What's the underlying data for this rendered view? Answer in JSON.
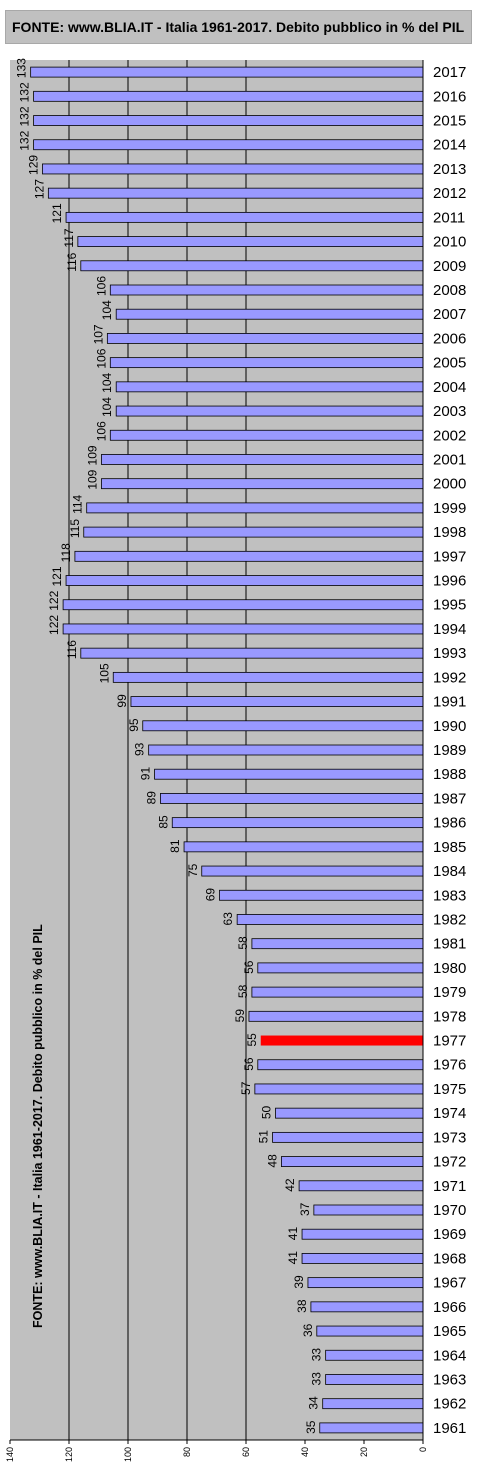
{
  "title": "FONTE: www.BLIA.IT - Italia 1961-2017. Debito pubblico in % del PIL",
  "colors": {
    "plot_bg": "#c0c0c0",
    "bar": "#9999ff",
    "highlight": "#ff0000",
    "grid": "#000000"
  },
  "chart_data": {
    "type": "bar",
    "orientation": "horizontal",
    "title": "FONTE: www.BLIA.IT - Italia 1961-2017. Debito pubblico in % del PIL",
    "side_label": "FONTE: www.BLIA.IT - Italia 1961-2017. Debito pubblico in % del PIL",
    "xlim": [
      0,
      140
    ],
    "x_reversed": true,
    "x_ticks": [
      140,
      120,
      100,
      80,
      60,
      40,
      20,
      0
    ],
    "gridlines": [
      120,
      100,
      80,
      60
    ],
    "highlight_category": "1977",
    "categories": [
      "2017",
      "2016",
      "2015",
      "2014",
      "2013",
      "2012",
      "2011",
      "2010",
      "2009",
      "2008",
      "2007",
      "2006",
      "2005",
      "2004",
      "2003",
      "2002",
      "2001",
      "2000",
      "1999",
      "1998",
      "1997",
      "1996",
      "1995",
      "1994",
      "1993",
      "1992",
      "1991",
      "1990",
      "1989",
      "1988",
      "1987",
      "1986",
      "1985",
      "1984",
      "1983",
      "1982",
      "1981",
      "1980",
      "1979",
      "1978",
      "1977",
      "1976",
      "1975",
      "1974",
      "1973",
      "1972",
      "1971",
      "1970",
      "1969",
      "1968",
      "1967",
      "1966",
      "1965",
      "1964",
      "1963",
      "1962",
      "1961"
    ],
    "values": [
      133,
      132,
      132,
      132,
      129,
      127,
      121,
      117,
      116,
      106,
      104,
      107,
      106,
      104,
      104,
      106,
      109,
      109,
      114,
      115,
      118,
      121,
      122,
      122,
      116,
      105,
      99,
      95,
      93,
      91,
      89,
      85,
      81,
      75,
      69,
      63,
      58,
      56,
      58,
      59,
      55,
      56,
      57,
      50,
      51,
      48,
      42,
      37,
      41,
      41,
      39,
      38,
      36,
      33,
      33,
      34,
      35
    ],
    "value_labels": [
      "133",
      "132",
      "132",
      "132",
      "129",
      "127",
      "121",
      "117",
      "116",
      "106",
      "104",
      "107",
      "106",
      "104",
      "104",
      "106",
      "109",
      "109",
      "114",
      "115",
      "118",
      "121",
      "122",
      "122",
      "116",
      "105",
      "99",
      "95",
      "93",
      "91",
      "89",
      "85",
      "81",
      "75",
      "69",
      "63",
      "58",
      "56",
      "58",
      "59",
      "55",
      "56",
      "57",
      "50",
      "51",
      "48",
      "42",
      "37",
      "41",
      "41",
      "39",
      "38",
      "36",
      "33",
      "33",
      "34",
      "35"
    ]
  }
}
